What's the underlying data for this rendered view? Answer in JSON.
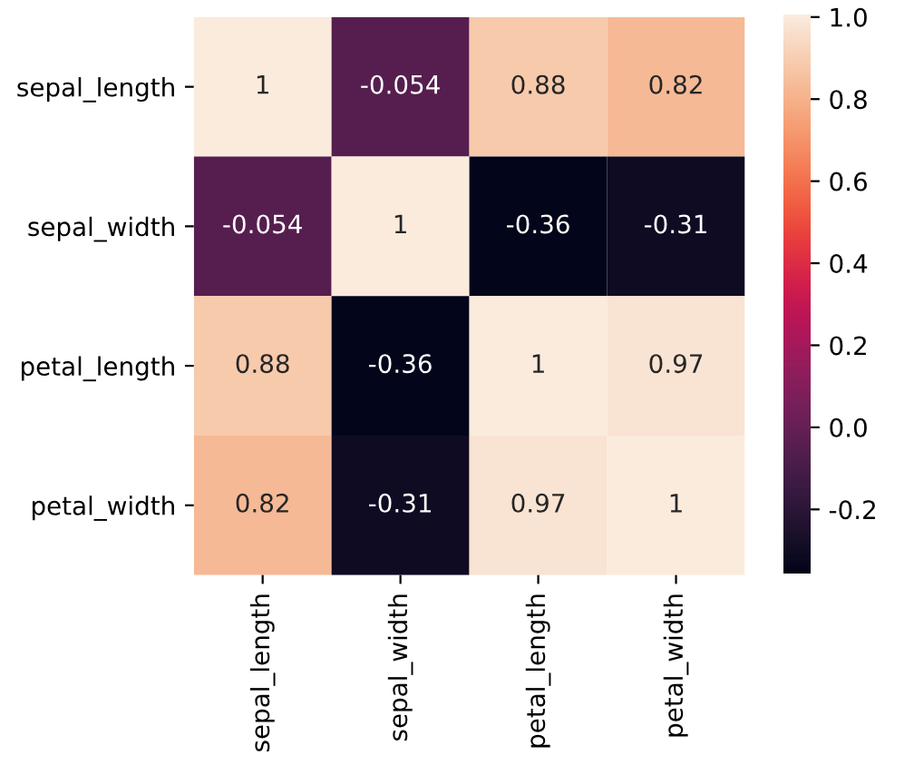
{
  "chart_data": {
    "type": "heatmap",
    "categories": [
      "sepal_length",
      "sepal_width",
      "petal_length",
      "petal_width"
    ],
    "y_categories": [
      "sepal_length",
      "sepal_width",
      "petal_length",
      "petal_width"
    ],
    "cells": [
      [
        1,
        -0.054,
        0.88,
        0.82
      ],
      [
        -0.054,
        1,
        -0.36,
        -0.31
      ],
      [
        0.88,
        -0.36,
        1,
        0.97
      ],
      [
        0.82,
        -0.31,
        0.97,
        1
      ]
    ],
    "data_labels": true,
    "clim": [
      -0.36,
      1.0
    ],
    "cticks": [
      -0.2,
      {
        "value": 0,
        "label": "0.0"
      },
      0.2,
      0.4,
      0.6,
      0.8,
      {
        "value": 1,
        "label": "1.0"
      }
    ]
  }
}
